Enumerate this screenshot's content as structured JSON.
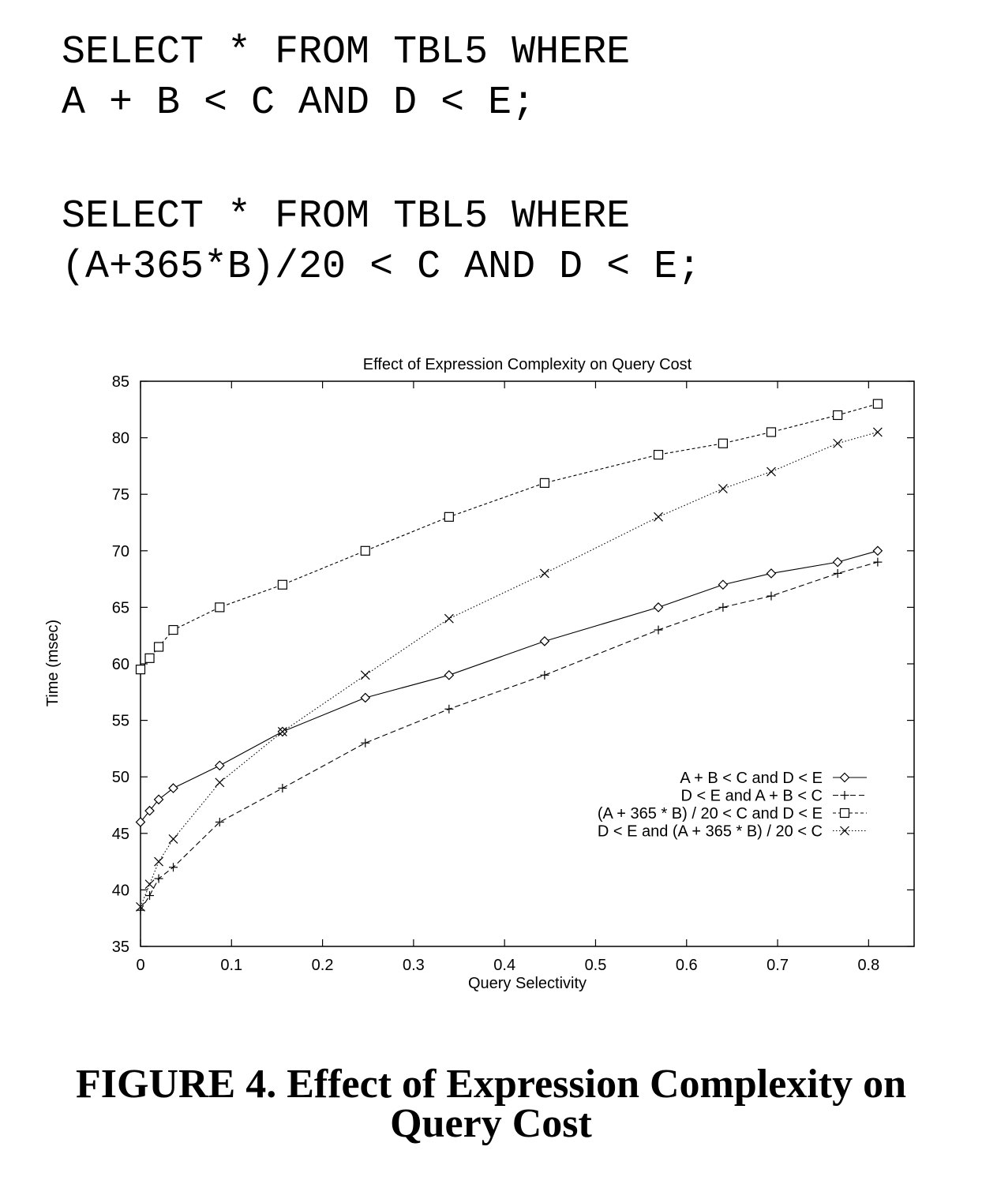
{
  "queries": [
    {
      "line1": "SELECT * FROM TBL5 WHERE",
      "line2": "A + B < C AND D < E;"
    },
    {
      "line1": "SELECT * FROM TBL5 WHERE",
      "line2": "(A+365*B)/20 < C AND D < E;"
    }
  ],
  "caption": {
    "line1": "FIGURE 4.  Effect of Expression Complexity on",
    "line2": "Query Cost"
  },
  "chart_data": {
    "type": "line",
    "title": "Effect of Expression Complexity on Query Cost",
    "xlabel": "Query Selectivity",
    "ylabel": "Time (msec)",
    "xlim": [
      0,
      0.85
    ],
    "ylim": [
      35,
      85
    ],
    "x_ticks": [
      0,
      0.1,
      0.2,
      0.3,
      0.4,
      0.5,
      0.6,
      0.7,
      0.8
    ],
    "y_ticks": [
      35,
      40,
      45,
      50,
      55,
      60,
      65,
      70,
      75,
      80,
      85
    ],
    "x_tick_labels": [
      "0",
      "0.1",
      "0.2",
      "0.3",
      "0.4",
      "0.5",
      "0.6",
      "0.7",
      "0.8"
    ],
    "y_tick_labels": [
      "35",
      "40",
      "45",
      "50",
      "55",
      "60",
      "65",
      "70",
      "75",
      "80",
      "85"
    ],
    "grid": false,
    "legend_position": "right-center",
    "series": [
      {
        "name": "A + B < C and D < E",
        "marker": "diamond",
        "line_style": "solid",
        "x": [
          0,
          0.01,
          0.02,
          0.036,
          0.087,
          0.156,
          0.247,
          0.339,
          0.444,
          0.569,
          0.64,
          0.693,
          0.766,
          0.81
        ],
        "y": [
          46,
          47,
          48,
          49,
          51,
          54,
          57,
          59,
          62,
          65,
          67,
          68,
          69,
          70
        ]
      },
      {
        "name": "D < E and A + B < C",
        "marker": "plus",
        "line_style": "dashed",
        "x": [
          0,
          0.01,
          0.02,
          0.036,
          0.087,
          0.156,
          0.247,
          0.339,
          0.444,
          0.569,
          0.64,
          0.693,
          0.766,
          0.81
        ],
        "y": [
          38.2,
          39.5,
          41,
          42,
          46,
          49,
          53,
          56,
          59,
          63,
          65,
          66,
          68,
          69
        ]
      },
      {
        "name": "(A + 365 * B) / 20 < C and D < E",
        "marker": "square",
        "line_style": "short-dash",
        "x": [
          0,
          0.01,
          0.02,
          0.036,
          0.087,
          0.156,
          0.247,
          0.339,
          0.444,
          0.569,
          0.64,
          0.693,
          0.766,
          0.81
        ],
        "y": [
          59.5,
          60.5,
          61.5,
          63,
          65,
          67,
          70,
          73,
          76,
          78.5,
          79.5,
          80.5,
          82,
          83
        ]
      },
      {
        "name": "D < E and (A + 365 * B) / 20 < C",
        "marker": "cross",
        "line_style": "dotted",
        "x": [
          0,
          0.01,
          0.02,
          0.036,
          0.087,
          0.156,
          0.247,
          0.339,
          0.444,
          0.569,
          0.64,
          0.693,
          0.766,
          0.81
        ],
        "y": [
          38.5,
          40.5,
          42.5,
          44.5,
          49.5,
          54,
          59,
          64,
          68,
          73,
          75.5,
          77,
          79.5,
          80.5
        ]
      }
    ]
  }
}
